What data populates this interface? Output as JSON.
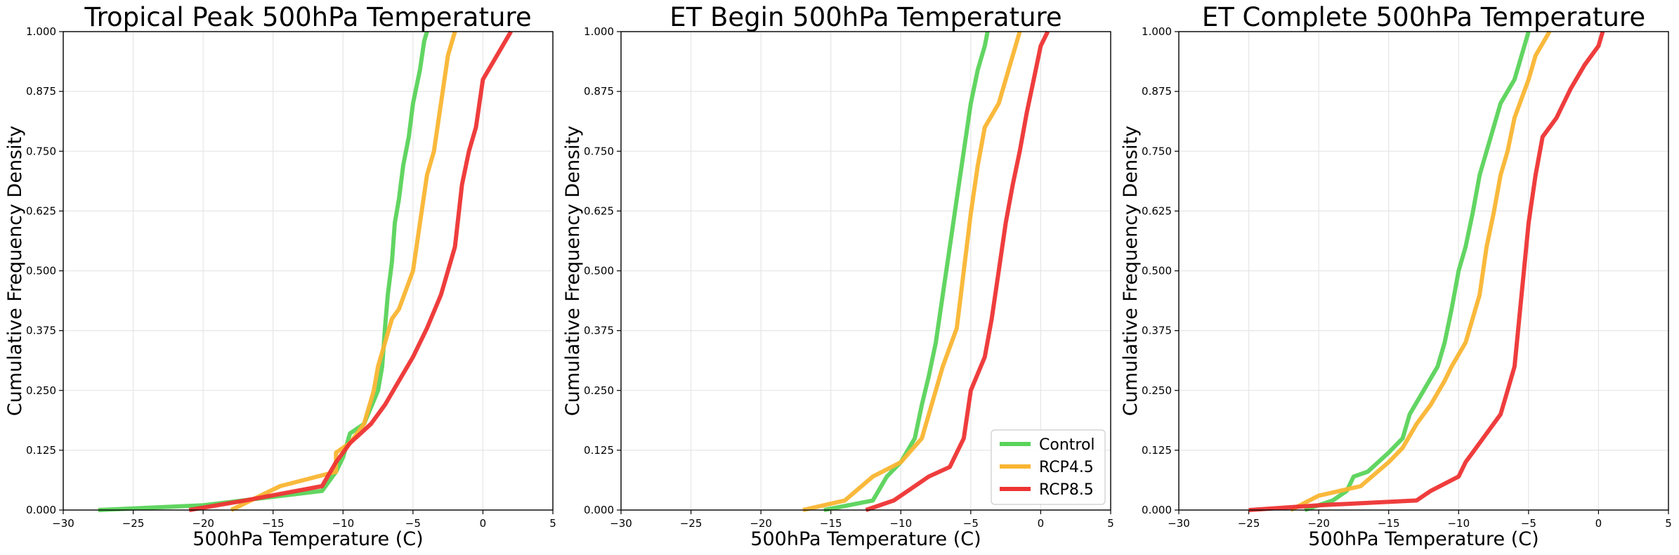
{
  "chart_data": [
    {
      "type": "line",
      "title": "Tropical Peak 500hPa Temperature",
      "xlabel": "500hPa Temperature (C)",
      "ylabel": "Cumulative Frequency Density",
      "xlim": [
        -30,
        5
      ],
      "ylim": [
        0,
        1
      ],
      "xticks": [
        "−30",
        "−25",
        "−20",
        "−15",
        "−10",
        "−5",
        "0",
        "5"
      ],
      "yticks": [
        "0.000",
        "0.125",
        "0.250",
        "0.375",
        "0.500",
        "0.625",
        "0.750",
        "0.875",
        "1.000"
      ],
      "grid": true,
      "legend": null,
      "series": [
        {
          "name": "Control",
          "x": [
            -27.5,
            -20,
            -11.5,
            -10.5,
            -10,
            -9.5,
            -8.5,
            -7.5,
            -7.2,
            -7,
            -6.8,
            -6.5,
            -6.3,
            -6,
            -5.7,
            -5.3,
            -5,
            -4.5,
            -4.2,
            -4
          ],
          "y": [
            0,
            0.01,
            0.04,
            0.08,
            0.11,
            0.16,
            0.18,
            0.25,
            0.3,
            0.38,
            0.45,
            0.52,
            0.6,
            0.65,
            0.72,
            0.78,
            0.85,
            0.92,
            0.98,
            1.0
          ]
        },
        {
          "name": "RCP4.5",
          "x": [
            -18,
            -14.5,
            -10.5,
            -10.5,
            -9.5,
            -8.5,
            -7.8,
            -7.5,
            -6.5,
            -6,
            -5,
            -4.5,
            -4,
            -3.5,
            -3,
            -2.5,
            -2
          ],
          "y": [
            0,
            0.05,
            0.08,
            0.12,
            0.14,
            0.18,
            0.25,
            0.3,
            0.4,
            0.42,
            0.5,
            0.6,
            0.7,
            0.75,
            0.85,
            0.95,
            1.0
          ]
        },
        {
          "name": "RCP8.5",
          "x": [
            -21,
            -17,
            -11.5,
            -10.5,
            -9.5,
            -8,
            -7,
            -6,
            -5,
            -4,
            -3,
            -2,
            -1.5,
            -1,
            -0.5,
            0,
            1,
            2
          ],
          "y": [
            0,
            0.02,
            0.05,
            0.1,
            0.14,
            0.18,
            0.22,
            0.27,
            0.32,
            0.38,
            0.45,
            0.55,
            0.68,
            0.75,
            0.8,
            0.9,
            0.95,
            1.0
          ]
        }
      ]
    },
    {
      "type": "line",
      "title": "ET Begin 500hPa Temperature",
      "xlabel": "500hPa Temperature (C)",
      "ylabel": "Cumulative Frequency Density",
      "xlim": [
        -30,
        5
      ],
      "ylim": [
        0,
        1
      ],
      "xticks": [
        "−30",
        "−25",
        "−20",
        "−15",
        "−10",
        "−5",
        "0",
        "5"
      ],
      "yticks": [
        "0.000",
        "0.125",
        "0.250",
        "0.375",
        "0.500",
        "0.625",
        "0.750",
        "0.875",
        "1.000"
      ],
      "grid": true,
      "legend": "lower right",
      "series": [
        {
          "name": "Control",
          "x": [
            -15.5,
            -12,
            -11,
            -10,
            -9,
            -8.5,
            -8,
            -7.5,
            -7,
            -6.5,
            -6,
            -5.5,
            -5,
            -4.5,
            -4,
            -3.8
          ],
          "y": [
            0,
            0.02,
            0.07,
            0.1,
            0.15,
            0.22,
            0.28,
            0.35,
            0.45,
            0.55,
            0.65,
            0.75,
            0.85,
            0.92,
            0.97,
            1.0
          ]
        },
        {
          "name": "RCP4.5",
          "x": [
            -17,
            -14,
            -12,
            -10,
            -8.5,
            -7.8,
            -7,
            -6,
            -5.5,
            -5,
            -4.5,
            -4,
            -3,
            -2.5,
            -2,
            -1.5
          ],
          "y": [
            0,
            0.02,
            0.07,
            0.1,
            0.15,
            0.22,
            0.3,
            0.38,
            0.5,
            0.62,
            0.72,
            0.8,
            0.85,
            0.9,
            0.95,
            1.0
          ]
        },
        {
          "name": "RCP8.5",
          "x": [
            -12.5,
            -10.5,
            -9.5,
            -8,
            -6.5,
            -5.5,
            -5,
            -4,
            -3.5,
            -3,
            -2.5,
            -2,
            -1.5,
            -1,
            -0.5,
            0,
            0.5
          ],
          "y": [
            0,
            0.02,
            0.04,
            0.07,
            0.09,
            0.15,
            0.25,
            0.32,
            0.4,
            0.5,
            0.6,
            0.68,
            0.75,
            0.83,
            0.9,
            0.97,
            1.0
          ]
        }
      ]
    },
    {
      "type": "line",
      "title": "ET Complete 500hPa Temperature",
      "xlabel": "500hPa Temperature (C)",
      "ylabel": "Cumulative Frequency Density",
      "xlim": [
        -30,
        5
      ],
      "ylim": [
        0,
        1
      ],
      "xticks": [
        "−30",
        "−25",
        "−20",
        "−15",
        "−10",
        "−5",
        "0",
        "5"
      ],
      "yticks": [
        "0.000",
        "0.125",
        "0.250",
        "0.375",
        "0.500",
        "0.625",
        "0.750",
        "0.875",
        "1.000"
      ],
      "grid": true,
      "legend": null,
      "series": [
        {
          "name": "Control",
          "x": [
            -21,
            -19,
            -18,
            -17.5,
            -16.5,
            -15,
            -14,
            -13.5,
            -12.5,
            -11.5,
            -11,
            -10.5,
            -10,
            -9.5,
            -9,
            -8.5,
            -8,
            -7.5,
            -7,
            -6,
            -5.5,
            -5
          ],
          "y": [
            0,
            0.02,
            0.04,
            0.07,
            0.08,
            0.12,
            0.15,
            0.2,
            0.25,
            0.3,
            0.35,
            0.42,
            0.5,
            0.55,
            0.62,
            0.7,
            0.75,
            0.8,
            0.85,
            0.9,
            0.95,
            1.0
          ]
        },
        {
          "name": "RCP4.5",
          "x": [
            -22,
            -20,
            -17,
            -15,
            -14,
            -13,
            -12,
            -11,
            -10.5,
            -9.5,
            -8.5,
            -8,
            -7.5,
            -7,
            -6.5,
            -6,
            -5,
            -4.5,
            -3.5
          ],
          "y": [
            0,
            0.03,
            0.05,
            0.1,
            0.13,
            0.18,
            0.22,
            0.27,
            0.3,
            0.35,
            0.45,
            0.55,
            0.62,
            0.7,
            0.75,
            0.82,
            0.9,
            0.95,
            1.0
          ]
        },
        {
          "name": "RCP8.5",
          "x": [
            -25,
            -20,
            -13,
            -12,
            -10,
            -9.5,
            -9,
            -8,
            -7,
            -6.5,
            -6,
            -5.5,
            -5,
            -4.5,
            -4,
            -3,
            -2,
            -1,
            0,
            0.3
          ],
          "y": [
            0,
            0.01,
            0.02,
            0.04,
            0.07,
            0.1,
            0.12,
            0.16,
            0.2,
            0.25,
            0.3,
            0.45,
            0.6,
            0.7,
            0.78,
            0.82,
            0.88,
            0.93,
            0.97,
            1.0
          ]
        }
      ]
    }
  ],
  "colors": {
    "Control": "#5ad35a",
    "RCP4.5": "#f9b531",
    "RCP8.5": "#ee3333",
    "grid": "#e6e6e6",
    "axes": "#000000"
  }
}
